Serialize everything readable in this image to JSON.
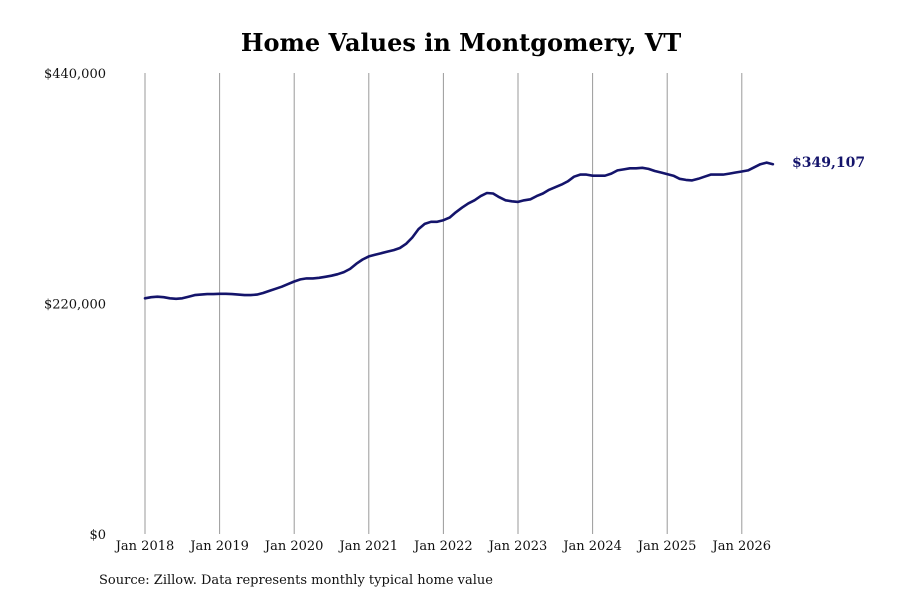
{
  "chart_data": {
    "type": "line",
    "title": "Home Values in Montgomery, VT",
    "xlabel": "",
    "ylabel": "",
    "ylim": [
      0,
      440000
    ],
    "y_ticks": [
      0,
      220000,
      440000
    ],
    "y_tick_labels": [
      "$0",
      "$220,000",
      "$440,000"
    ],
    "x_ticks": [
      "2018-01",
      "2019-01",
      "2020-01",
      "2021-01",
      "2022-01",
      "2023-01",
      "2024-01",
      "2025-01",
      "2026-01"
    ],
    "x_tick_labels": [
      "Jan 2018",
      "Jan 2019",
      "Jan 2020",
      "Jan 2021",
      "Jan 2022",
      "Jan 2023",
      "Jan 2024",
      "Jan 2025",
      "Jan 2026"
    ],
    "grid": "vertical lines at x ticks",
    "series": [
      {
        "color": "#14146b",
        "x": [
          "2018-01",
          "2018-02",
          "2018-03",
          "2018-04",
          "2018-05",
          "2018-06",
          "2018-07",
          "2018-08",
          "2018-09",
          "2018-10",
          "2018-11",
          "2018-12",
          "2019-01",
          "2019-02",
          "2019-03",
          "2019-04",
          "2019-05",
          "2019-06",
          "2019-07",
          "2019-08",
          "2019-09",
          "2019-10",
          "2019-11",
          "2019-12",
          "2020-01",
          "2020-02",
          "2020-03",
          "2020-04",
          "2020-05",
          "2020-06",
          "2020-07",
          "2020-08",
          "2020-09",
          "2020-10",
          "2020-11",
          "2020-12",
          "2021-01",
          "2021-02",
          "2021-03",
          "2021-04",
          "2021-05",
          "2021-06",
          "2021-07",
          "2021-08",
          "2021-09",
          "2021-10",
          "2021-11",
          "2021-12",
          "2022-01",
          "2022-02",
          "2022-03",
          "2022-04",
          "2022-05",
          "2022-06",
          "2022-07",
          "2022-08",
          "2022-09",
          "2022-10",
          "2022-11",
          "2022-12",
          "2023-01",
          "2023-02",
          "2023-03",
          "2023-04",
          "2023-05",
          "2023-06",
          "2023-07",
          "2023-08",
          "2023-09",
          "2023-10",
          "2023-11",
          "2023-12",
          "2024-01",
          "2024-02",
          "2024-03",
          "2024-04",
          "2024-05",
          "2024-06",
          "2024-07",
          "2024-08",
          "2024-09",
          "2024-10",
          "2024-11",
          "2024-12",
          "2025-01",
          "2025-02",
          "2025-03",
          "2025-04",
          "2025-05",
          "2025-06",
          "2025-07",
          "2025-08",
          "2025-09",
          "2025-10",
          "2025-11",
          "2025-12",
          "2026-01",
          "2026-02",
          "2026-03",
          "2026-04",
          "2026-05",
          "2026-06"
        ],
        "values": [
          225000,
          226000,
          226500,
          226000,
          225000,
          224500,
          225000,
          226500,
          228000,
          228500,
          229000,
          229000,
          229300,
          229300,
          229000,
          228500,
          228000,
          228000,
          228500,
          230000,
          232000,
          234000,
          236000,
          238500,
          241000,
          243000,
          244000,
          244000,
          244500,
          245500,
          246500,
          248000,
          250000,
          253000,
          258000,
          262000,
          265000,
          266500,
          268000,
          269500,
          271000,
          273000,
          277000,
          283000,
          291000,
          296000,
          298000,
          298000,
          299500,
          302000,
          307000,
          311500,
          315500,
          318500,
          322500,
          325500,
          325000,
          321500,
          318500,
          317500,
          317000,
          318500,
          319500,
          322500,
          325000,
          328500,
          331000,
          333500,
          336500,
          341000,
          343000,
          343000,
          342000,
          342000,
          342000,
          344000,
          347000,
          348000,
          349000,
          349000,
          349500,
          348500,
          346500,
          345000,
          343500,
          342000,
          339000,
          338000,
          337500,
          339000,
          341000,
          343000,
          343000,
          343000,
          344000,
          345000,
          346000,
          347000,
          350000,
          353000,
          354500,
          353000
        ]
      }
    ],
    "end_label": "$349,107",
    "end_label_color": "#14146b"
  },
  "footer": {
    "source": "Source: Zillow. Data represents monthly typical home value"
  }
}
